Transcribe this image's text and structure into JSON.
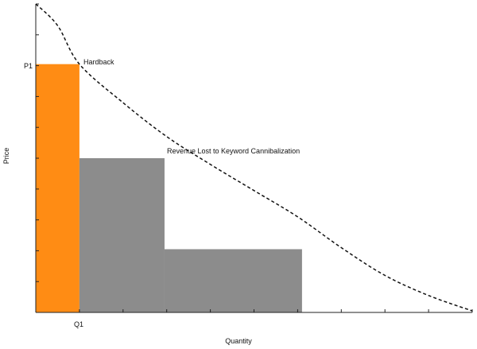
{
  "chart_data": {
    "type": "area",
    "title": "",
    "xlabel": "Quantity",
    "ylabel": "Price",
    "x_tick_labels": [
      "Q1"
    ],
    "y_tick_labels": [
      "P1"
    ],
    "annotations": {
      "hardback": "Hardback",
      "revenue_lost": "Revenue Lost to Keyword Cannibalization"
    },
    "demand_curve": {
      "style": "dashed",
      "color": "#111111",
      "points": [
        [
          0,
          10.0
        ],
        [
          0.5,
          9.3
        ],
        [
          1,
          8.05
        ],
        [
          2,
          6.8
        ],
        [
          3,
          5.7
        ],
        [
          4,
          4.8
        ],
        [
          5,
          3.95
        ],
        [
          6,
          3.1
        ],
        [
          7,
          2.1
        ],
        [
          8,
          1.2
        ],
        [
          9,
          0.55
        ],
        [
          10,
          0.05
        ]
      ]
    },
    "regions": [
      {
        "name": "Hardback",
        "color": "#ff8c14",
        "x0": 0,
        "x1": 1.0,
        "y0": 0,
        "y1": 8.05
      },
      {
        "name": "Revenue Lost to Keyword Cannibalization",
        "color": "#8c8c8c",
        "x0": 1.0,
        "x1": 2.95,
        "y0": 0,
        "y1": 5.0
      },
      {
        "name": "Revenue Lost to Keyword Cannibalization",
        "color": "#8c8c8c",
        "x0": 2.95,
        "x1": 6.1,
        "y0": 0,
        "y1": 2.05
      }
    ],
    "xlim": [
      0,
      10
    ],
    "ylim": [
      0,
      10
    ],
    "grid": false,
    "legend": "none"
  }
}
